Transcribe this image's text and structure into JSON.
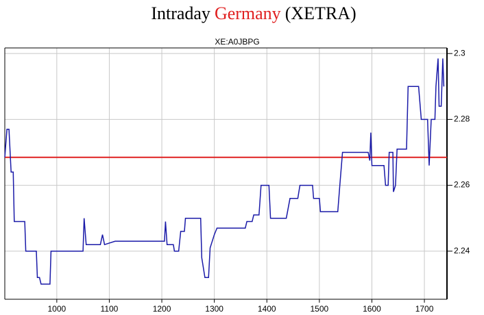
{
  "chart_data": {
    "type": "line",
    "title_parts": [
      {
        "text": "Intraday",
        "color": "#000000"
      },
      {
        "text": "Germany",
        "color": "#e02020"
      },
      {
        "text": "(XETRA)",
        "color": "#000000"
      }
    ],
    "subtitle": "XE:A0JBPG",
    "xlim": [
      901,
      1743
    ],
    "xticks": [
      1000,
      1100,
      1200,
      1300,
      1400,
      1500,
      1600,
      1700
    ],
    "ylim": [
      2.2254,
      2.3017
    ],
    "yticks": [
      2.24,
      2.26,
      2.28,
      2.3
    ],
    "grid": true,
    "reference_line": {
      "value": 2.2685,
      "color": "#e02020"
    },
    "series": [
      {
        "color": "#1a1aa8",
        "x": [
          901,
          905,
          909,
          913,
          917,
          919,
          939,
          941,
          961,
          963,
          967,
          970,
          987,
          989,
          1050,
          1052,
          1056,
          1083,
          1087,
          1091,
          1111,
          1205,
          1207,
          1210,
          1222,
          1224,
          1232,
          1236,
          1243,
          1245,
          1274,
          1276,
          1282,
          1289,
          1292,
          1300,
          1305,
          1359,
          1362,
          1372,
          1375,
          1385,
          1389,
          1404,
          1407,
          1437,
          1444,
          1459,
          1463,
          1487,
          1489,
          1500,
          1502,
          1535,
          1539,
          1544,
          1593,
          1596,
          1598,
          1600,
          1623,
          1626,
          1631,
          1633,
          1640,
          1641,
          1645,
          1648,
          1666,
          1669,
          1689,
          1694,
          1706,
          1709,
          1713,
          1720,
          1722,
          1726,
          1728,
          1732,
          1735,
          1737
        ],
        "values": [
          2.2685,
          2.277,
          2.277,
          2.264,
          2.264,
          2.249,
          2.249,
          2.24,
          2.24,
          2.232,
          2.232,
          2.23,
          2.23,
          2.24,
          2.24,
          2.25,
          2.242,
          2.242,
          2.245,
          2.242,
          2.243,
          2.243,
          2.249,
          2.242,
          2.242,
          2.24,
          2.24,
          2.246,
          2.246,
          2.25,
          2.25,
          2.238,
          2.232,
          2.232,
          2.241,
          2.245,
          2.247,
          2.247,
          2.249,
          2.249,
          2.251,
          2.251,
          2.26,
          2.26,
          2.25,
          2.25,
          2.256,
          2.256,
          2.26,
          2.26,
          2.256,
          2.256,
          2.252,
          2.252,
          2.26,
          2.27,
          2.27,
          2.2675,
          2.276,
          2.266,
          2.266,
          2.26,
          2.26,
          2.27,
          2.27,
          2.258,
          2.26,
          2.271,
          2.271,
          2.29,
          2.29,
          2.28,
          2.28,
          2.266,
          2.28,
          2.28,
          2.29,
          2.2985,
          2.284,
          2.284,
          2.2985,
          2.29
        ]
      }
    ]
  }
}
